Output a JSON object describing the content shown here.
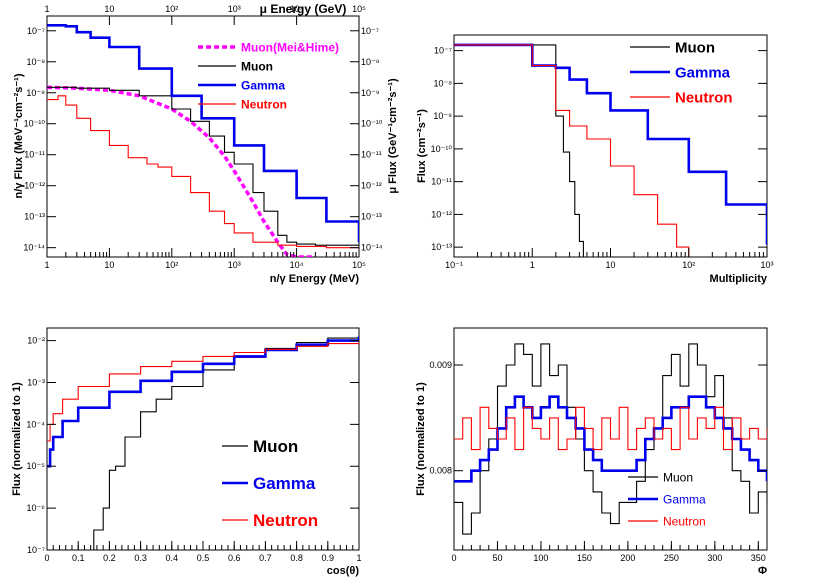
{
  "figure": {
    "panel_count": 4
  },
  "chart_data": [
    {
      "type": "line",
      "panel": "top-left",
      "xlabel": "n/γ Energy (MeV)",
      "x2label": "μ Energy (GeV)",
      "ylabel": "n/γ Flux (MeV⁻¹cm⁻²s⁻¹)",
      "y2label": "μ Flux (GeV⁻¹cm⁻²s⁻¹)",
      "xscale": "log",
      "yscale": "log",
      "xlim": [
        1,
        100000
      ],
      "ylim": [
        5e-15,
        3e-07
      ],
      "x2lim": [
        1,
        100000
      ],
      "xticks": [
        {
          "v": 1,
          "label": "1"
        },
        {
          "v": 10,
          "label": "10"
        },
        {
          "v": 100,
          "label": "10²"
        },
        {
          "v": 1000,
          "label": "10³"
        },
        {
          "v": 10000,
          "label": "10⁴"
        },
        {
          "v": 100000,
          "label": "10⁵"
        }
      ],
      "yticks": [
        {
          "v": 1e-14,
          "label": "10⁻¹⁴"
        },
        {
          "v": 1e-13,
          "label": "10⁻¹³"
        },
        {
          "v": 1e-12,
          "label": "10⁻¹²"
        },
        {
          "v": 1e-11,
          "label": "10⁻¹¹"
        },
        {
          "v": 1e-10,
          "label": "10⁻¹⁰"
        },
        {
          "v": 1e-09,
          "label": "10⁻⁹"
        },
        {
          "v": 1e-08,
          "label": "10⁻⁸"
        },
        {
          "v": 1e-07,
          "label": "10⁻⁷"
        }
      ],
      "legend_position": "top-right",
      "series": [
        {
          "name": "Muon(Mei&Hime)",
          "color": "#ff00ff",
          "style": "dashed",
          "x": [
            1,
            3,
            10,
            30,
            100,
            200,
            400,
            700,
            1000,
            2000,
            3000,
            5000,
            7000,
            10000,
            20000
          ],
          "y": [
            1.5e-09,
            1.4e-09,
            1.2e-09,
            8e-10,
            3e-10,
            1.2e-10,
            3.5e-11,
            9e-12,
            3e-12,
            3e-13,
            7e-14,
            1.5e-14,
            6e-15,
            5e-15,
            5e-15
          ]
        },
        {
          "name": "Muon",
          "color": "#000000",
          "style": "step",
          "x": [
            1,
            3,
            10,
            30,
            100,
            200,
            400,
            700,
            1000,
            2000,
            3000,
            5000,
            7000,
            10000,
            20000,
            50000,
            100000
          ],
          "y": [
            1.5e-09,
            1.4e-09,
            1.2e-09,
            8e-10,
            3e-10,
            1.2e-10,
            4e-11,
            1.2e-11,
            5e-12,
            6e-13,
            1.5e-13,
            2.5e-14,
            1.5e-14,
            1.3e-14,
            1.2e-14,
            1.2e-14,
            1.2e-14
          ]
        },
        {
          "name": "Gamma",
          "color": "#0000ee",
          "style": "step",
          "x": [
            1,
            2,
            3,
            5,
            10,
            30,
            100,
            300,
            1000,
            3000,
            10000,
            30000,
            100000
          ],
          "y": [
            1.5e-07,
            1.4e-07,
            9e-08,
            6e-08,
            3e-08,
            6e-09,
            8e-10,
            1.5e-10,
            2e-11,
            3e-12,
            4e-13,
            7e-14,
            1.5e-14
          ]
        },
        {
          "name": "Neutron",
          "color": "#ff0000",
          "style": "step",
          "x": [
            1,
            1.5,
            2,
            3,
            5,
            10,
            20,
            40,
            60,
            100,
            200,
            400,
            700,
            1000,
            2000,
            5000,
            10000,
            30000,
            100000
          ],
          "y": [
            6e-10,
            8e-10,
            4e-10,
            1.5e-10,
            6e-11,
            2e-11,
            8e-12,
            5e-12,
            4e-12,
            2e-12,
            6e-13,
            1.5e-13,
            6e-14,
            3e-14,
            1.5e-14,
            1.2e-14,
            1.1e-14,
            1e-14,
            1e-14
          ]
        }
      ]
    },
    {
      "type": "line",
      "panel": "top-right",
      "xlabel": "Multiplicity",
      "ylabel": "Flux (cm⁻²s⁻¹)",
      "xscale": "log",
      "yscale": "log",
      "xlim": [
        0.1,
        1000
      ],
      "ylim": [
        5e-14,
        3e-07
      ],
      "xticks": [
        {
          "v": 0.1,
          "label": "10⁻¹"
        },
        {
          "v": 1,
          "label": "1"
        },
        {
          "v": 10,
          "label": "10"
        },
        {
          "v": 100,
          "label": "10²"
        },
        {
          "v": 1000,
          "label": "10³"
        }
      ],
      "yticks": [
        {
          "v": 1e-13,
          "label": "10⁻¹³"
        },
        {
          "v": 1e-12,
          "label": "10⁻¹²"
        },
        {
          "v": 1e-11,
          "label": "10⁻¹¹"
        },
        {
          "v": 1e-10,
          "label": "10⁻¹⁰"
        },
        {
          "v": 1e-09,
          "label": "10⁻⁹"
        },
        {
          "v": 1e-08,
          "label": "10⁻⁸"
        },
        {
          "v": 1e-07,
          "label": "10⁻⁷"
        }
      ],
      "legend_position": "top-right",
      "series": [
        {
          "name": "Muon",
          "color": "#000000",
          "style": "step",
          "x": [
            0.1,
            1,
            2,
            2.5,
            3,
            3.5,
            4,
            4.5
          ],
          "y": [
            1.5e-07,
            1.5e-07,
            1e-09,
            8e-11,
            1e-11,
            1e-12,
            1.5e-13,
            5e-14
          ]
        },
        {
          "name": "Gamma",
          "color": "#0000ee",
          "style": "step",
          "x": [
            0.1,
            1,
            2,
            3,
            5,
            10,
            30,
            100,
            300,
            1000
          ],
          "y": [
            1.5e-07,
            3.5e-08,
            3e-08,
            1.3e-08,
            5e-09,
            1.5e-09,
            2e-10,
            2e-11,
            2e-12,
            1.2e-13
          ]
        },
        {
          "name": "Neutron",
          "color": "#ff0000",
          "style": "step",
          "x": [
            0.1,
            1,
            1.5,
            2,
            3,
            5,
            10,
            20,
            40,
            70,
            100
          ],
          "y": [
            1.5e-07,
            3.5e-08,
            3.5e-08,
            1.5e-09,
            5e-10,
            2e-10,
            3e-11,
            4e-12,
            5e-13,
            1e-13,
            5e-14
          ]
        }
      ]
    },
    {
      "type": "line",
      "panel": "bottom-left",
      "xlabel": "cos(θ)",
      "ylabel": "Flux (normalized to 1)",
      "xscale": "linear",
      "yscale": "log",
      "xlim": [
        0,
        1
      ],
      "ylim": [
        1e-07,
        0.02
      ],
      "xticks": [
        {
          "v": 0,
          "label": "0"
        },
        {
          "v": 0.1,
          "label": "0.1"
        },
        {
          "v": 0.2,
          "label": "0.2"
        },
        {
          "v": 0.3,
          "label": "0.3"
        },
        {
          "v": 0.4,
          "label": "0.4"
        },
        {
          "v": 0.5,
          "label": "0.5"
        },
        {
          "v": 0.6,
          "label": "0.6"
        },
        {
          "v": 0.7,
          "label": "0.7"
        },
        {
          "v": 0.8,
          "label": "0.8"
        },
        {
          "v": 0.9,
          "label": "0.9"
        },
        {
          "v": 1,
          "label": "1"
        }
      ],
      "yticks": [
        {
          "v": 1e-07,
          "label": "10⁻⁷"
        },
        {
          "v": 1e-06,
          "label": "10⁻⁶"
        },
        {
          "v": 1e-05,
          "label": "10⁻⁵"
        },
        {
          "v": 0.0001,
          "label": "10⁻⁴"
        },
        {
          "v": 0.001,
          "label": "10⁻³"
        },
        {
          "v": 0.01,
          "label": "10⁻²"
        }
      ],
      "legend_position": "bottom-right",
      "series": [
        {
          "name": "Muon",
          "color": "#000000",
          "style": "step",
          "x": [
            0.12,
            0.15,
            0.18,
            0.2,
            0.22,
            0.25,
            0.3,
            0.35,
            0.4,
            0.5,
            0.6,
            0.7,
            0.8,
            0.9,
            1.0
          ],
          "y": [
            1e-07,
            3e-07,
            1e-06,
            8e-06,
            1e-05,
            5e-05,
            0.0002,
            0.0004,
            0.0008,
            0.002,
            0.004,
            0.0065,
            0.009,
            0.0115,
            0.014
          ]
        },
        {
          "name": "Gamma",
          "color": "#0000ee",
          "style": "step",
          "x": [
            0,
            0.01,
            0.02,
            0.05,
            0.1,
            0.2,
            0.3,
            0.4,
            0.5,
            0.6,
            0.7,
            0.8,
            0.9,
            1.0
          ],
          "y": [
            1e-05,
            2.5e-05,
            5e-05,
            0.00012,
            0.00025,
            0.0006,
            0.0011,
            0.0018,
            0.0028,
            0.0042,
            0.006,
            0.008,
            0.01,
            0.0125
          ]
        },
        {
          "name": "Neutron",
          "color": "#ff0000",
          "style": "step",
          "x": [
            0,
            0.01,
            0.02,
            0.05,
            0.1,
            0.2,
            0.3,
            0.4,
            0.5,
            0.6,
            0.7,
            0.8,
            0.9,
            1.0
          ],
          "y": [
            4e-05,
            0.0001,
            0.00018,
            0.0004,
            0.0008,
            0.0016,
            0.0024,
            0.0032,
            0.0042,
            0.0052,
            0.0062,
            0.0073,
            0.0085,
            0.01
          ]
        }
      ]
    },
    {
      "type": "line",
      "panel": "bottom-right",
      "xlabel": "Φ",
      "ylabel": "Flux (normalized to 1)",
      "xscale": "linear",
      "yscale": "linear",
      "xlim": [
        0,
        360
      ],
      "ylim": [
        0.00725,
        0.00935
      ],
      "xticks": [
        {
          "v": 0,
          "label": "0"
        },
        {
          "v": 50,
          "label": "50"
        },
        {
          "v": 100,
          "label": "100"
        },
        {
          "v": 150,
          "label": "150"
        },
        {
          "v": 200,
          "label": "200"
        },
        {
          "v": 250,
          "label": "250"
        },
        {
          "v": 300,
          "label": "300"
        },
        {
          "v": 350,
          "label": "350"
        }
      ],
      "yticks": [
        {
          "v": 0.008,
          "label": "0.008"
        },
        {
          "v": 0.009,
          "label": "0.009"
        }
      ],
      "legend_position": "bottom-right",
      "series": [
        {
          "name": "Muon",
          "color": "#000000",
          "style": "step",
          "x": [
            0,
            10,
            20,
            30,
            40,
            50,
            60,
            70,
            80,
            90,
            100,
            110,
            120,
            130,
            140,
            150,
            160,
            170,
            180,
            190,
            200,
            210,
            220,
            230,
            240,
            250,
            260,
            270,
            280,
            290,
            300,
            310,
            320,
            330,
            340,
            350,
            360
          ],
          "y": [
            0.0077,
            0.0074,
            0.0076,
            0.008,
            0.0083,
            0.0088,
            0.009,
            0.0092,
            0.0091,
            0.0088,
            0.0092,
            0.0089,
            0.009,
            0.0086,
            0.0083,
            0.008,
            0.0078,
            0.0076,
            0.0075,
            0.0077,
            0.0077,
            0.0079,
            0.0082,
            0.0084,
            0.0089,
            0.0091,
            0.0088,
            0.0092,
            0.009,
            0.0087,
            0.0089,
            0.0085,
            0.008,
            0.0079,
            0.0076,
            0.0078,
            0.0077
          ]
        },
        {
          "name": "Gamma",
          "color": "#0000ee",
          "style": "step",
          "x": [
            0,
            10,
            20,
            30,
            40,
            50,
            60,
            70,
            80,
            90,
            100,
            110,
            120,
            130,
            140,
            150,
            160,
            170,
            180,
            190,
            200,
            210,
            220,
            230,
            240,
            250,
            260,
            270,
            280,
            290,
            300,
            310,
            320,
            330,
            340,
            350,
            360
          ],
          "y": [
            0.0079,
            0.0079,
            0.008,
            0.0081,
            0.0082,
            0.0084,
            0.0086,
            0.0087,
            0.0086,
            0.0085,
            0.0086,
            0.0087,
            0.0086,
            0.0085,
            0.0084,
            0.0082,
            0.0081,
            0.008,
            0.008,
            0.008,
            0.008,
            0.0081,
            0.0083,
            0.0084,
            0.0085,
            0.0086,
            0.0086,
            0.0087,
            0.0087,
            0.0086,
            0.0085,
            0.0084,
            0.0083,
            0.0082,
            0.0081,
            0.008,
            0.0079
          ]
        },
        {
          "name": "Neutron",
          "color": "#ff0000",
          "style": "step",
          "x": [
            0,
            10,
            20,
            30,
            40,
            50,
            60,
            70,
            80,
            90,
            100,
            110,
            120,
            130,
            140,
            150,
            160,
            170,
            180,
            190,
            200,
            210,
            220,
            230,
            240,
            250,
            260,
            270,
            280,
            290,
            300,
            310,
            320,
            330,
            340,
            350,
            360
          ],
          "y": [
            0.0083,
            0.0085,
            0.0082,
            0.0086,
            0.0084,
            0.0083,
            0.0085,
            0.0082,
            0.0086,
            0.0084,
            0.0083,
            0.0085,
            0.0082,
            0.0083,
            0.0086,
            0.0084,
            0.0082,
            0.0085,
            0.0083,
            0.0086,
            0.0082,
            0.0084,
            0.0085,
            0.0083,
            0.0084,
            0.0082,
            0.0086,
            0.0083,
            0.0085,
            0.0084,
            0.0086,
            0.0082,
            0.0085,
            0.0083,
            0.0084,
            0.0083,
            0.0084
          ]
        }
      ]
    }
  ]
}
